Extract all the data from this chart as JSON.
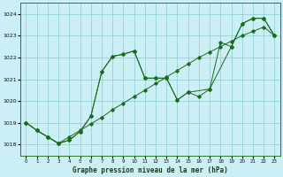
{
  "title": "Graphe pression niveau de la mer (hPa)",
  "bg_color": "#cceef5",
  "grid_color": "#88cccc",
  "line_color": "#1a6b1a",
  "xlim": [
    -0.5,
    23.5
  ],
  "ylim": [
    1017.5,
    1024.5
  ],
  "yticks": [
    1018,
    1019,
    1020,
    1021,
    1022,
    1023,
    1024
  ],
  "xticks": [
    0,
    1,
    2,
    3,
    4,
    5,
    6,
    7,
    8,
    9,
    10,
    11,
    12,
    13,
    14,
    15,
    16,
    17,
    18,
    19,
    20,
    21,
    22,
    23
  ],
  "series1_x": [
    0,
    1,
    2,
    3,
    4,
    5,
    6,
    7,
    8,
    9,
    10,
    11,
    12,
    13,
    14,
    15,
    16,
    17,
    18,
    19,
    20,
    21,
    22,
    23
  ],
  "series1_y": [
    1019.0,
    1018.65,
    1018.35,
    1018.05,
    1018.35,
    1018.65,
    1018.95,
    1019.25,
    1019.6,
    1019.9,
    1020.2,
    1020.5,
    1020.8,
    1021.1,
    1021.4,
    1021.7,
    1022.0,
    1022.25,
    1022.5,
    1022.75,
    1023.0,
    1023.2,
    1023.4,
    1023.0
  ],
  "series2_x": [
    0,
    1,
    2,
    3,
    4,
    5,
    6,
    7,
    8,
    9,
    10,
    11,
    12,
    13,
    14,
    15,
    16,
    17,
    18,
    19,
    20,
    21,
    22,
    23
  ],
  "series2_y": [
    1019.0,
    1018.65,
    1018.35,
    1018.05,
    1018.2,
    1018.6,
    1019.3,
    1021.35,
    1022.05,
    1022.15,
    1022.3,
    1021.05,
    1021.05,
    1021.05,
    1020.05,
    1020.4,
    1020.2,
    1020.55,
    1022.7,
    1022.5,
    1023.55,
    1023.8,
    1023.8,
    1023.0
  ],
  "series3_x": [
    0,
    1,
    2,
    3,
    4,
    5,
    6,
    7,
    8,
    9,
    10,
    11,
    12,
    13,
    14,
    15,
    17,
    19,
    20,
    21,
    22,
    23
  ],
  "series3_y": [
    1019.0,
    1018.65,
    1018.35,
    1018.05,
    1018.2,
    1018.6,
    1019.3,
    1021.35,
    1022.05,
    1022.15,
    1022.3,
    1021.05,
    1021.05,
    1021.05,
    1020.05,
    1020.4,
    1020.55,
    1022.5,
    1023.55,
    1023.8,
    1023.8,
    1023.0
  ]
}
